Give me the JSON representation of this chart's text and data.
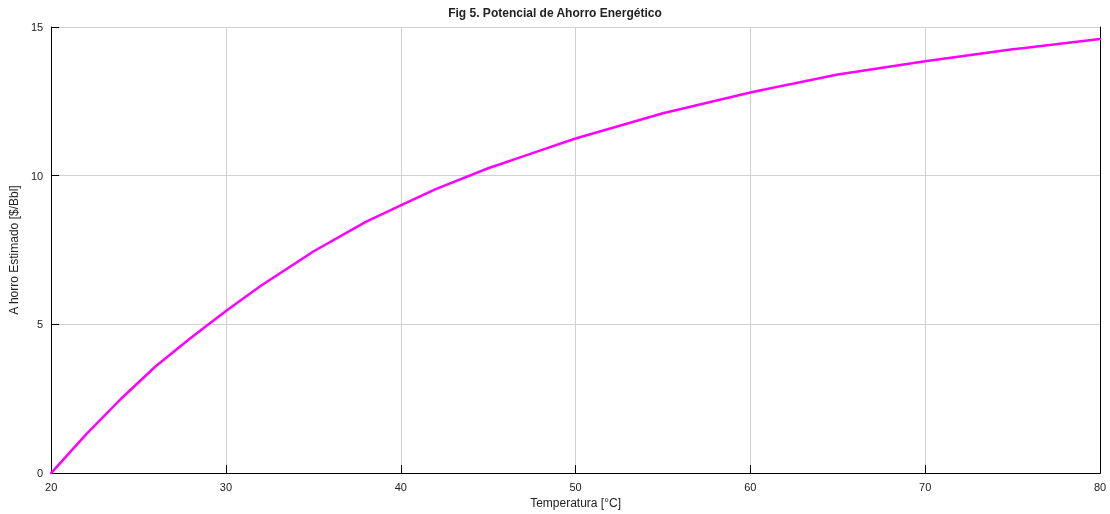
{
  "chart_data": {
    "type": "line",
    "title": "Fig 5. Potencial de Ahorro Energético",
    "xlabel": "Temperatura [°C]",
    "ylabel": "A horro Estimado [$/Bbl]",
    "x": [
      20,
      22,
      24,
      26,
      28,
      30,
      32,
      35,
      38,
      40,
      42,
      45,
      48,
      50,
      55,
      60,
      65,
      70,
      75,
      80
    ],
    "series": [
      {
        "color": "#ff00ff",
        "values": [
          0,
          1.3,
          2.5,
          3.6,
          4.55,
          5.45,
          6.3,
          7.45,
          8.45,
          9.0,
          9.55,
          10.25,
          10.85,
          11.25,
          12.1,
          12.8,
          13.4,
          13.85,
          14.25,
          14.6
        ]
      }
    ],
    "xlim": [
      20,
      80
    ],
    "xticks": [
      20,
      30,
      40,
      50,
      60,
      70,
      80
    ],
    "ylim": [
      0,
      15
    ],
    "yticks": [
      0,
      5,
      10,
      15
    ],
    "grid": true,
    "marker": "none",
    "line_style": "solid"
  }
}
